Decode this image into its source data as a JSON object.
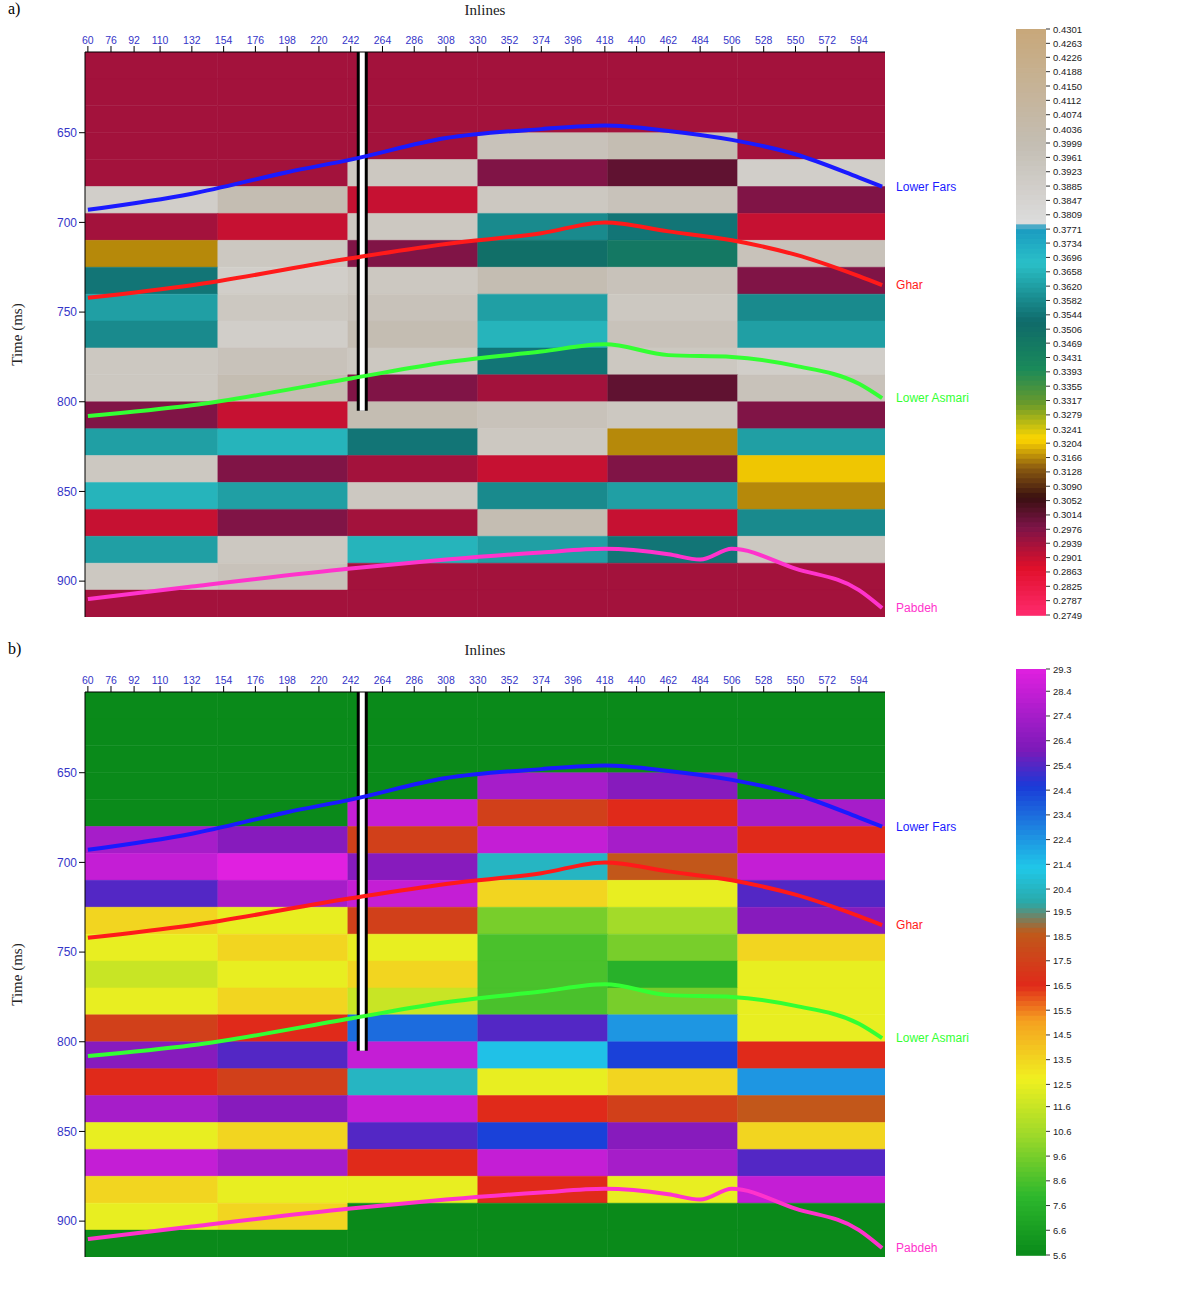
{
  "chart_data": [
    {
      "type": "heatmap",
      "panel_label": "a)",
      "xlabel": "Inlines",
      "ylabel": "Time (ms)",
      "xlim": [
        58,
        612
      ],
      "xticks": [
        60,
        76,
        92,
        110,
        132,
        154,
        176,
        198,
        220,
        242,
        264,
        286,
        308,
        330,
        352,
        374,
        396,
        418,
        440,
        462,
        484,
        506,
        528,
        550,
        572,
        594
      ],
      "ylim": [
        920,
        605
      ],
      "yticks": [
        650,
        700,
        750,
        800,
        850,
        900
      ],
      "cells": {
        "x_edges": [
          58,
          150,
          240,
          330,
          420,
          510,
          612
        ],
        "y_edges": [
          605,
          620,
          635,
          650,
          665,
          680,
          695,
          710,
          725,
          740,
          755,
          770,
          785,
          800,
          815,
          830,
          845,
          860,
          875,
          890,
          905,
          920
        ],
        "values": [
          [
            0.2939,
            0.2939,
            0.2939,
            0.2939,
            0.2939,
            0.2939
          ],
          [
            0.2939,
            0.2939,
            0.2939,
            0.2939,
            0.2939,
            0.2939
          ],
          [
            0.2939,
            0.2939,
            0.2939,
            0.2939,
            0.2939,
            0.2939
          ],
          [
            0.2939,
            0.2939,
            0.2939,
            0.3961,
            0.3999,
            0.2939
          ],
          [
            0.2939,
            0.2939,
            0.3923,
            0.2976,
            0.3014,
            0.3885
          ],
          [
            0.3885,
            0.3999,
            0.2901,
            0.3923,
            0.3961,
            0.2976
          ],
          [
            0.2939,
            0.2901,
            0.3923,
            0.3582,
            0.3544,
            0.2901
          ],
          [
            0.3166,
            0.3923,
            0.2976,
            0.3506,
            0.3469,
            0.3961
          ],
          [
            0.3544,
            0.3885,
            0.3923,
            0.3999,
            0.3961,
            0.2976
          ],
          [
            0.362,
            0.3923,
            0.3961,
            0.362,
            0.3923,
            0.3582
          ],
          [
            0.3582,
            0.3885,
            0.3999,
            0.3658,
            0.3961,
            0.362
          ],
          [
            0.3923,
            0.3961,
            0.3923,
            0.3544,
            0.3923,
            0.3885
          ],
          [
            0.3923,
            0.3999,
            0.2976,
            0.2939,
            0.3014,
            0.3961
          ],
          [
            0.2976,
            0.2901,
            0.3999,
            0.3961,
            0.3923,
            0.2976
          ],
          [
            0.362,
            0.3658,
            0.3544,
            0.3923,
            0.3166,
            0.362
          ],
          [
            0.3923,
            0.2976,
            0.2939,
            0.2901,
            0.2976,
            0.3204
          ],
          [
            0.3658,
            0.362,
            0.3923,
            0.3582,
            0.362,
            0.3166
          ],
          [
            0.2901,
            0.2976,
            0.2939,
            0.3999,
            0.2901,
            0.3582
          ],
          [
            0.362,
            0.3923,
            0.3658,
            0.362,
            0.3544,
            0.3923
          ],
          [
            0.3923,
            0.3961,
            0.2939,
            0.2939,
            0.2939,
            0.2939
          ],
          [
            0.2939,
            0.2939,
            0.2939,
            0.2939,
            0.2939,
            0.2939
          ]
        ]
      },
      "colorbar": {
        "range": [
          0.2749,
          0.4301
        ],
        "ticks": [
          0.4301,
          0.4263,
          0.4226,
          0.4188,
          {
            "value": 0.415,
            "label": "0.4150"
          },
          0.4112,
          0.4074,
          0.4036,
          0.3999,
          0.3961,
          0.3923,
          0.3885,
          0.3847,
          0.3809,
          0.3771,
          0.3734,
          0.3696,
          0.3658,
          {
            "value": 0.362,
            "label": "0.3620"
          },
          0.3582,
          0.3544,
          0.3506,
          0.3469,
          0.3431,
          0.3393,
          0.3355,
          0.3317,
          0.3279,
          0.3241,
          0.3204,
          0.3166,
          0.3128,
          {
            "value": 0.309,
            "label": "0.3090"
          },
          0.3052,
          0.3014,
          0.2976,
          0.2939,
          0.2901,
          0.2863,
          0.2825,
          0.2787,
          0.2749
        ]
      },
      "well": {
        "inline": 250,
        "time": [
          605,
          805
        ]
      },
      "series": [
        {
          "name": "Lower Fars",
          "color": "#1a1aff",
          "x": [
            60,
            132,
            198,
            242,
            308,
            374,
            418,
            462,
            506,
            550,
            594,
            610
          ],
          "values": [
            693,
            684,
            672,
            665,
            653,
            648,
            646,
            649,
            654,
            662,
            675,
            680
          ]
        },
        {
          "name": "Ghar",
          "color": "#ff1a1a",
          "x": [
            60,
            132,
            242,
            308,
            374,
            418,
            462,
            506,
            550,
            594,
            610
          ],
          "values": [
            742,
            735,
            720,
            712,
            706,
            700,
            705,
            710,
            718,
            730,
            735
          ]
        },
        {
          "name": "Lower Asmari",
          "color": "#33ff33",
          "x": [
            60,
            132,
            242,
            308,
            374,
            418,
            462,
            506,
            550,
            594,
            610
          ],
          "values": [
            808,
            802,
            787,
            778,
            772,
            768,
            774,
            775,
            780,
            790,
            798
          ]
        },
        {
          "name": "Pabdeh",
          "color": "#ff33cc",
          "x": [
            60,
            132,
            242,
            308,
            374,
            418,
            462,
            484,
            506,
            550,
            594,
            610
          ],
          "values": [
            910,
            903,
            893,
            888,
            884,
            882,
            885,
            888,
            882,
            893,
            905,
            915
          ]
        }
      ]
    },
    {
      "type": "heatmap",
      "panel_label": "b)",
      "xlabel": "Inlines",
      "ylabel": "Time (ms)",
      "xlim": [
        58,
        612
      ],
      "xticks": [
        60,
        76,
        92,
        110,
        132,
        154,
        176,
        198,
        220,
        242,
        264,
        286,
        308,
        330,
        352,
        374,
        396,
        418,
        440,
        462,
        484,
        506,
        528,
        550,
        572,
        594
      ],
      "ylim": [
        920,
        605
      ],
      "yticks": [
        650,
        700,
        750,
        800,
        850,
        900
      ],
      "cells": {
        "x_edges": [
          58,
          150,
          240,
          330,
          420,
          510,
          612
        ],
        "y_edges": [
          605,
          620,
          635,
          650,
          665,
          680,
          695,
          710,
          725,
          740,
          755,
          770,
          785,
          800,
          815,
          830,
          845,
          860,
          875,
          890,
          905,
          920
        ],
        "values": [
          [
            5.6,
            5.6,
            5.6,
            5.6,
            5.6,
            5.6
          ],
          [
            5.6,
            5.6,
            5.6,
            5.6,
            5.6,
            5.6
          ],
          [
            5.6,
            5.6,
            5.6,
            5.6,
            5.6,
            5.6
          ],
          [
            5.6,
            5.6,
            5.6,
            27.4,
            26.4,
            5.6
          ],
          [
            5.6,
            5.6,
            28.4,
            17.5,
            16.5,
            27.4
          ],
          [
            27.4,
            26.4,
            17.5,
            28.4,
            27.4,
            16.5
          ],
          [
            28.4,
            29.3,
            26.4,
            20.4,
            18.5,
            28.4
          ],
          [
            25.4,
            27.4,
            28.4,
            13.5,
            12.5,
            25.4
          ],
          [
            13.5,
            12.5,
            17.5,
            9.6,
            10.6,
            26.4
          ],
          [
            12.5,
            13.5,
            12.5,
            8.6,
            9.6,
            13.5
          ],
          [
            11.6,
            12.5,
            13.5,
            8.6,
            7.6,
            12.5
          ],
          [
            12.5,
            13.5,
            11.6,
            8.6,
            9.6,
            12.5
          ],
          [
            17.5,
            16.5,
            23.4,
            25.4,
            22.4,
            12.5
          ],
          [
            26.4,
            25.4,
            28.4,
            21.4,
            24.4,
            16.5
          ],
          [
            16.5,
            17.5,
            20.4,
            12.5,
            13.5,
            22.4
          ],
          [
            27.4,
            26.4,
            28.4,
            16.5,
            17.5,
            18.5
          ],
          [
            12.5,
            13.5,
            25.4,
            24.4,
            26.4,
            13.5
          ],
          [
            28.4,
            27.4,
            16.5,
            28.4,
            27.4,
            25.4
          ],
          [
            13.5,
            12.5,
            12.5,
            16.5,
            12.5,
            28.4
          ],
          [
            12.5,
            13.5,
            5.6,
            5.6,
            5.6,
            5.6
          ],
          [
            5.6,
            5.6,
            5.6,
            5.6,
            5.6,
            5.6
          ]
        ]
      },
      "colorbar": {
        "range": [
          5.6,
          29.3
        ],
        "ticks": [
          29.3,
          28.4,
          27.4,
          26.4,
          25.4,
          24.4,
          23.4,
          22.4,
          21.4,
          20.4,
          19.5,
          18.5,
          17.5,
          16.5,
          15.5,
          14.5,
          13.5,
          12.5,
          11.6,
          10.6,
          9.6,
          8.6,
          7.6,
          6.6,
          5.6
        ]
      },
      "well": {
        "inline": 250,
        "time": [
          605,
          805
        ]
      },
      "series": [
        {
          "name": "Lower Fars",
          "color": "#1a1aff",
          "x": [
            60,
            132,
            198,
            242,
            308,
            374,
            418,
            462,
            506,
            550,
            594,
            610
          ],
          "values": [
            693,
            684,
            672,
            665,
            653,
            648,
            646,
            649,
            654,
            662,
            675,
            680
          ]
        },
        {
          "name": "Ghar",
          "color": "#ff1a1a",
          "x": [
            60,
            132,
            242,
            308,
            374,
            418,
            462,
            506,
            550,
            594,
            610
          ],
          "values": [
            742,
            735,
            720,
            712,
            706,
            700,
            705,
            710,
            718,
            730,
            735
          ]
        },
        {
          "name": "Lower Asmari",
          "color": "#33ff33",
          "x": [
            60,
            132,
            242,
            308,
            374,
            418,
            462,
            506,
            550,
            594,
            610
          ],
          "values": [
            808,
            802,
            787,
            778,
            772,
            768,
            774,
            775,
            780,
            790,
            798
          ]
        },
        {
          "name": "Pabdeh",
          "color": "#ff33cc",
          "x": [
            60,
            132,
            242,
            308,
            374,
            418,
            462,
            484,
            506,
            550,
            594,
            610
          ],
          "values": [
            910,
            903,
            893,
            888,
            884,
            882,
            885,
            888,
            882,
            893,
            905,
            915
          ]
        }
      ]
    }
  ]
}
